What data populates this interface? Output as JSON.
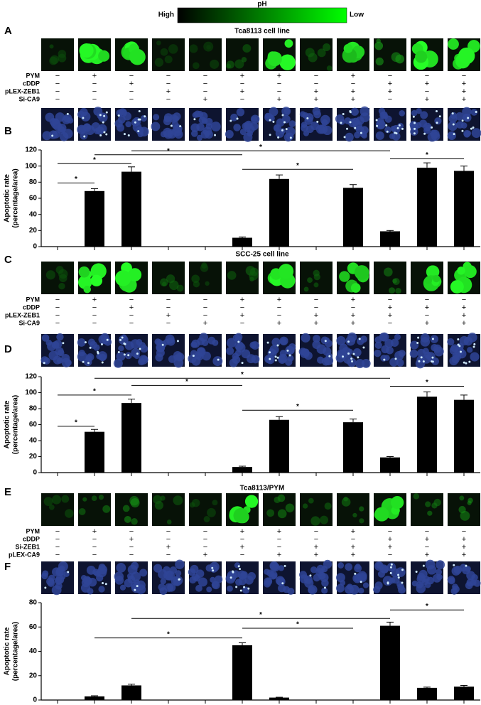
{
  "figure": {
    "colorbar": {
      "title": "pH",
      "high": "High",
      "low": "Low"
    },
    "panels": [
      {
        "label": "A",
        "title": "Tca8113 cell line",
        "rows": [
          {
            "name": "PYM",
            "signs": [
              "−",
              "+",
              "−",
              "−",
              "−",
              "+",
              "+",
              "−",
              "+",
              "−",
              "−",
              "−"
            ]
          },
          {
            "name": "cDDP",
            "signs": [
              "−",
              "−",
              "+",
              "−",
              "−",
              "−",
              "−",
              "−",
              "−",
              "+",
              "+",
              "+"
            ]
          },
          {
            "name": "pLEX-ZEB1",
            "signs": [
              "−",
              "−",
              "−",
              "+",
              "−",
              "+",
              "−",
              "+",
              "+",
              "+",
              "−",
              "+"
            ]
          },
          {
            "name": "Si-CA9",
            "signs": [
              "−",
              "−",
              "−",
              "−",
              "+",
              "−",
              "+",
              "+",
              "+",
              "−",
              "+",
              "+"
            ]
          }
        ]
      },
      {
        "label": "B"
      },
      {
        "label": "C",
        "title": "SCC-25 cell line",
        "rows": [
          {
            "name": "PYM",
            "signs": [
              "−",
              "+",
              "−",
              "−",
              "−",
              "+",
              "+",
              "−",
              "+",
              "−",
              "−",
              "−"
            ]
          },
          {
            "name": "cDDP",
            "signs": [
              "−",
              "−",
              "+",
              "−",
              "−",
              "−",
              "−",
              "−",
              "−",
              "+",
              "+",
              "+"
            ]
          },
          {
            "name": "pLEX-ZEB1",
            "signs": [
              "−",
              "−",
              "−",
              "+",
              "−",
              "+",
              "−",
              "+",
              "+",
              "+",
              "−",
              "+"
            ]
          },
          {
            "name": "Si-CA9",
            "signs": [
              "−",
              "−",
              "−",
              "−",
              "+",
              "−",
              "+",
              "+",
              "+",
              "−",
              "+",
              "+"
            ]
          }
        ]
      },
      {
        "label": "D"
      },
      {
        "label": "E",
        "title": "Tca8113/PYM",
        "rows": [
          {
            "name": "PYM",
            "signs": [
              "−",
              "+",
              "−",
              "−",
              "−",
              "+",
              "+",
              "−",
              "+",
              "−",
              "−",
              "−"
            ]
          },
          {
            "name": "cDDP",
            "signs": [
              "−",
              "−",
              "+",
              "−",
              "−",
              "−",
              "−",
              "−",
              "−",
              "+",
              "+",
              "+"
            ]
          },
          {
            "name": "Si-ZEB1",
            "signs": [
              "−",
              "−",
              "−",
              "+",
              "−",
              "+",
              "−",
              "+",
              "+",
              "+",
              "−",
              "+"
            ]
          },
          {
            "name": "pLEX-CA9",
            "signs": [
              "−",
              "−",
              "−",
              "−",
              "+",
              "−",
              "+",
              "+",
              "+",
              "−",
              "+",
              "+"
            ]
          }
        ]
      },
      {
        "label": "F"
      }
    ]
  },
  "chart_data": [
    {
      "type": "bar",
      "color": "#000000",
      "categories": [
        null,
        null,
        null,
        null,
        null,
        null,
        null,
        null,
        null,
        null,
        null,
        null
      ],
      "values": [
        0,
        69,
        93,
        0,
        0,
        11,
        84,
        0,
        73,
        19,
        98,
        94
      ],
      "errors": [
        0,
        3,
        6,
        0,
        0,
        1,
        5,
        0,
        4,
        1,
        6,
        6
      ],
      "ylim": [
        0,
        120
      ],
      "yticks": [
        0,
        20,
        40,
        60,
        80,
        100,
        120
      ],
      "ylabel": [
        "Apoptotic rate",
        "(percentage/area)"
      ],
      "annotations": [
        "*",
        "*",
        "*",
        "*",
        "*",
        "*"
      ]
    },
    {
      "type": "bar",
      "color": "#000000",
      "categories": [
        null,
        null,
        null,
        null,
        null,
        null,
        null,
        null,
        null,
        null,
        null,
        null
      ],
      "values": [
        0,
        51,
        87,
        0,
        0,
        7,
        66,
        0,
        63,
        19,
        95,
        91
      ],
      "errors": [
        0,
        3,
        5,
        0,
        0,
        1,
        4,
        0,
        4,
        1,
        6,
        6
      ],
      "ylim": [
        0,
        120
      ],
      "yticks": [
        0,
        20,
        40,
        60,
        80,
        100,
        120
      ],
      "ylabel": [
        "Apoptotic rate",
        "(percentage/area)"
      ],
      "annotations": [
        "*",
        "*",
        "*",
        "*",
        "*",
        "*"
      ]
    },
    {
      "type": "bar",
      "color": "#000000",
      "categories": [
        null,
        null,
        null,
        null,
        null,
        null,
        null,
        null,
        null,
        null,
        null,
        null
      ],
      "values": [
        0,
        3,
        12,
        0,
        0,
        45,
        2,
        0,
        0,
        61,
        10,
        11
      ],
      "errors": [
        0,
        0.5,
        1,
        0,
        0,
        2,
        0.3,
        0,
        0,
        3,
        0.6,
        1
      ],
      "ylim": [
        0,
        80
      ],
      "yticks": [
        0,
        20,
        40,
        60,
        80
      ],
      "ylabel": [
        "Apoptotic rate",
        "(percentage/area)"
      ],
      "annotations": [
        "*",
        "*",
        "*",
        "*"
      ]
    }
  ]
}
